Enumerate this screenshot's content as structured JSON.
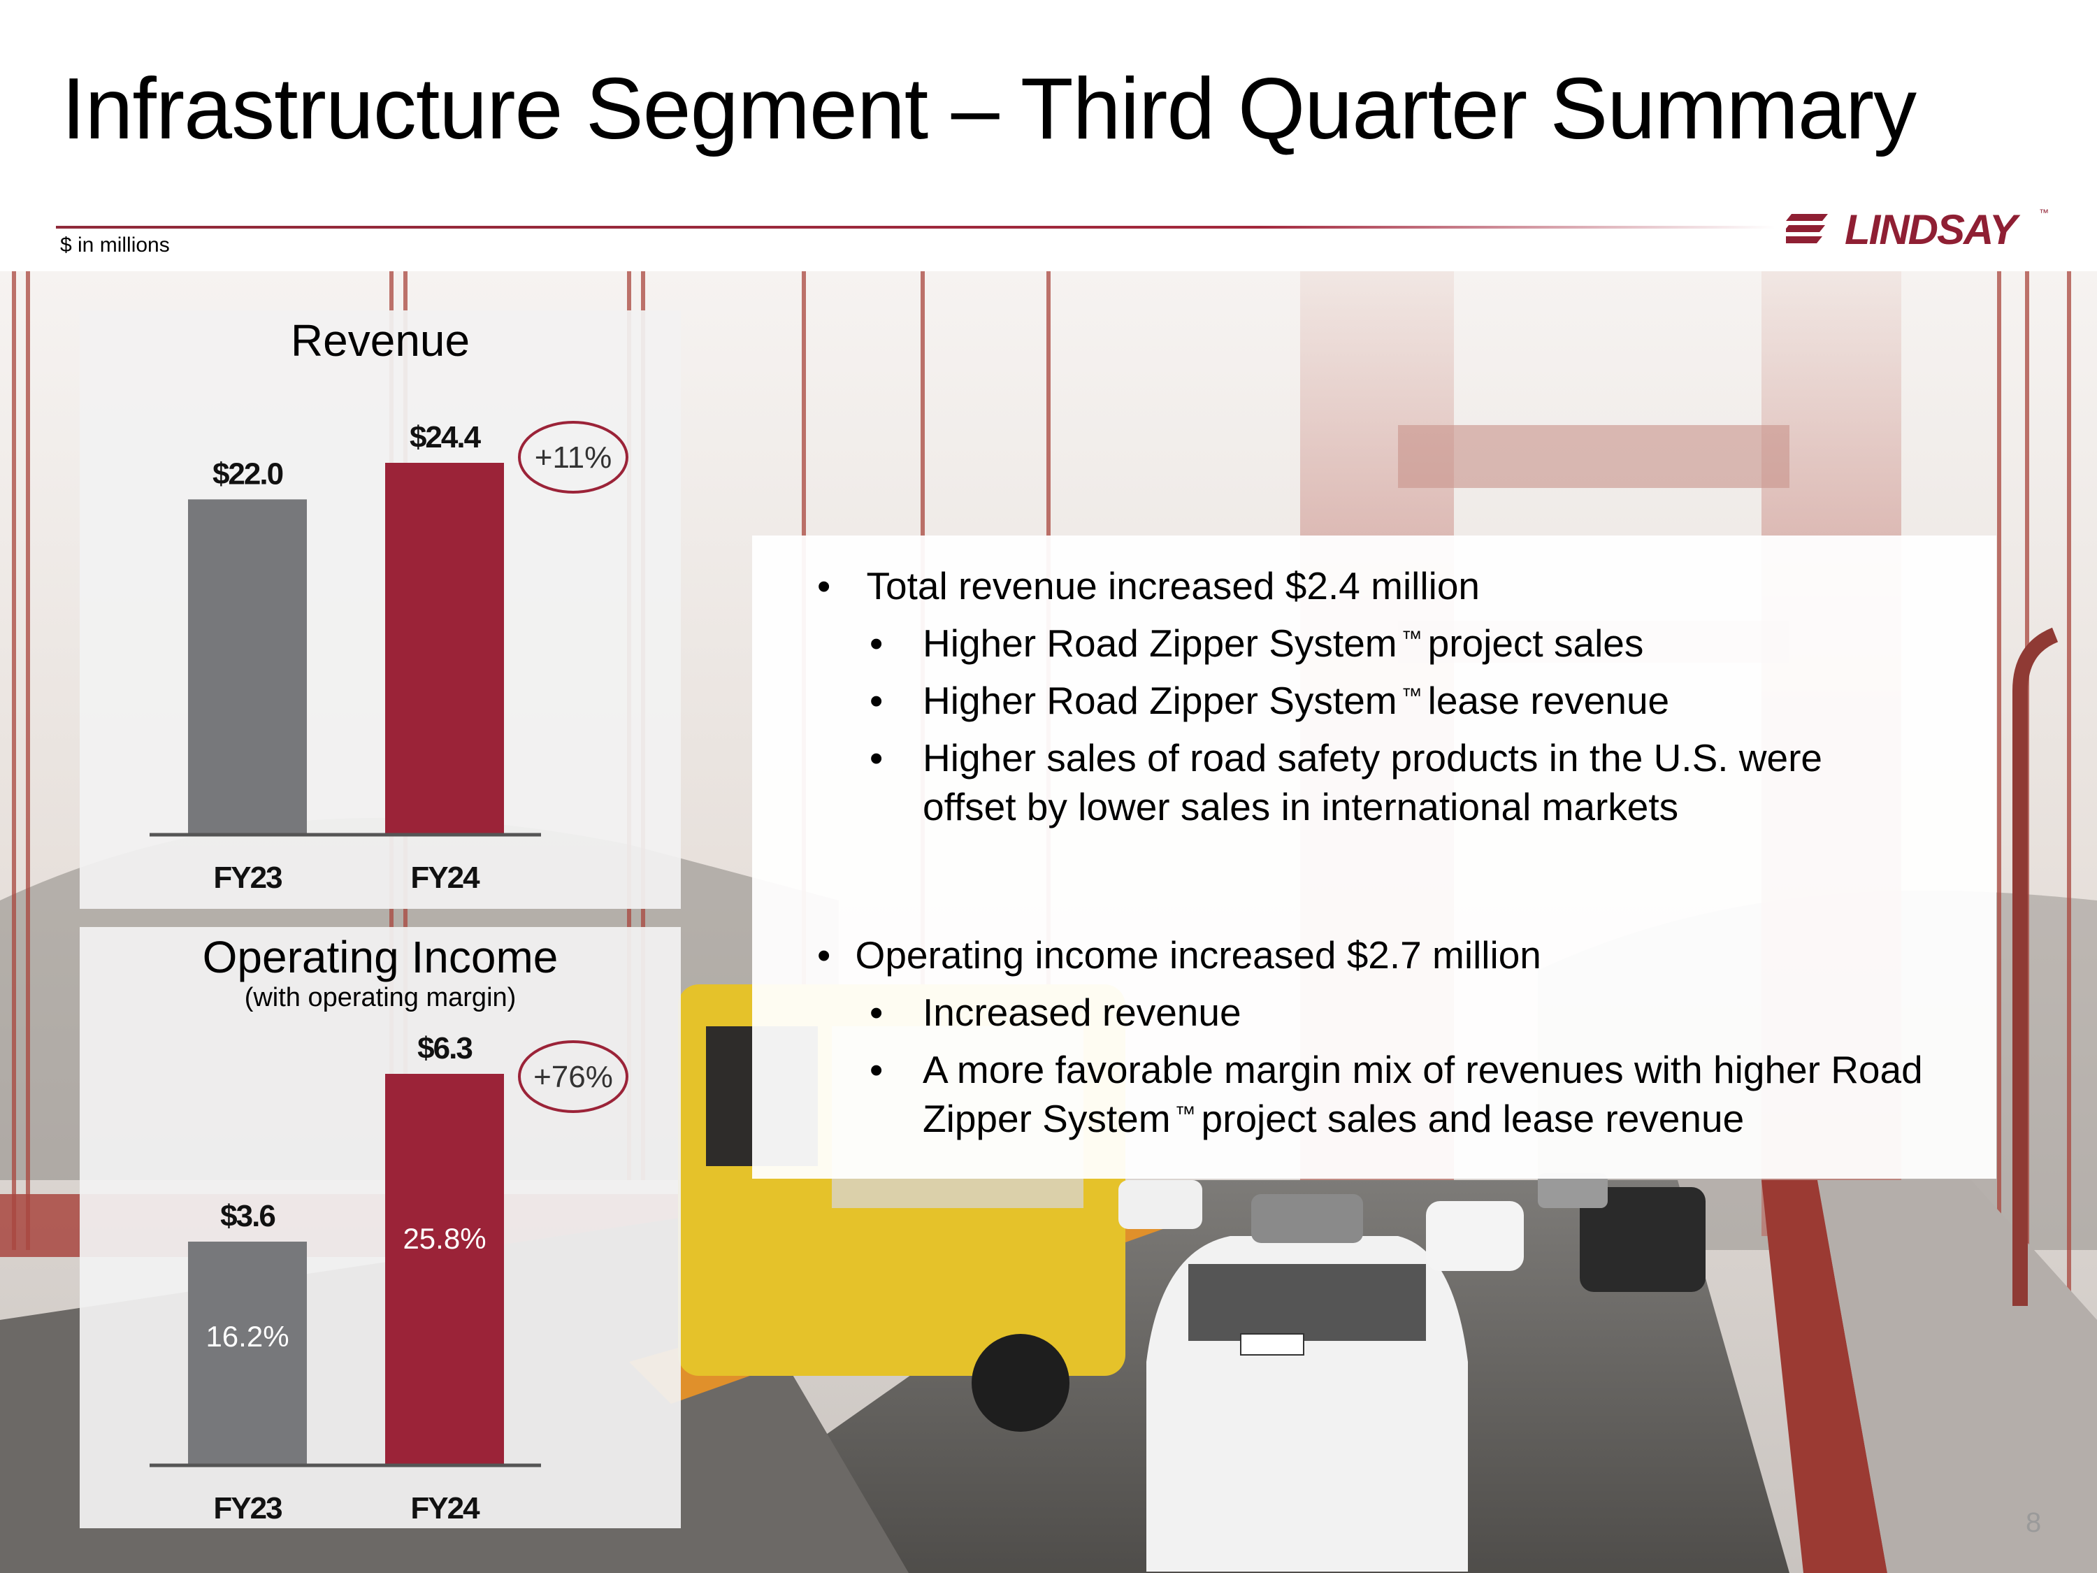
{
  "slide": {
    "title": "Infrastructure Segment – Third Quarter Summary",
    "units_note": "$ in millions",
    "logo": "LINDSAY",
    "logo_tm": "™",
    "page_number": "8"
  },
  "colors": {
    "accent": "#9b2338",
    "fy23_bar": "#77787b",
    "fy24_bar": "#9b2338",
    "rule": "#9b2338"
  },
  "chart_data": [
    {
      "type": "bar",
      "title": "Revenue",
      "categories": [
        "FY23",
        "FY24"
      ],
      "values": [
        22.0,
        24.4
      ],
      "value_labels": [
        "$22.0",
        "$24.4"
      ],
      "change_label": "+11%",
      "ylim": [
        0,
        24.4
      ]
    },
    {
      "type": "bar",
      "title": "Operating Income",
      "subtitle": "(with operating margin)",
      "categories": [
        "FY23",
        "FY24"
      ],
      "values": [
        3.6,
        6.3
      ],
      "value_labels": [
        "$3.6",
        "$6.3"
      ],
      "inner_labels": [
        "16.2%",
        "25.8%"
      ],
      "change_label": "+76%",
      "ylim": [
        0,
        6.3
      ]
    }
  ],
  "bullets": {
    "revenue_main": "Total revenue increased $2.4 million",
    "revenue_sub1_a": "Higher Road Zipper System",
    "revenue_sub1_b": "project sales",
    "revenue_sub2_a": "Higher Road Zipper System",
    "revenue_sub2_b": "lease revenue",
    "revenue_sub3_line1": "Higher sales of road safety products in the U.S. were",
    "revenue_sub3_line2": "offset by lower sales in international markets",
    "opinc_main": "Operating income increased $2.7 million",
    "opinc_sub1": "Increased revenue",
    "opinc_sub2_line1": "A more favorable margin mix of revenues with higher Road",
    "opinc_sub2_line2_a": "Zipper System",
    "opinc_sub2_line2_b": "project sales and lease revenue",
    "tm": "™",
    "bullet_char": "•"
  }
}
